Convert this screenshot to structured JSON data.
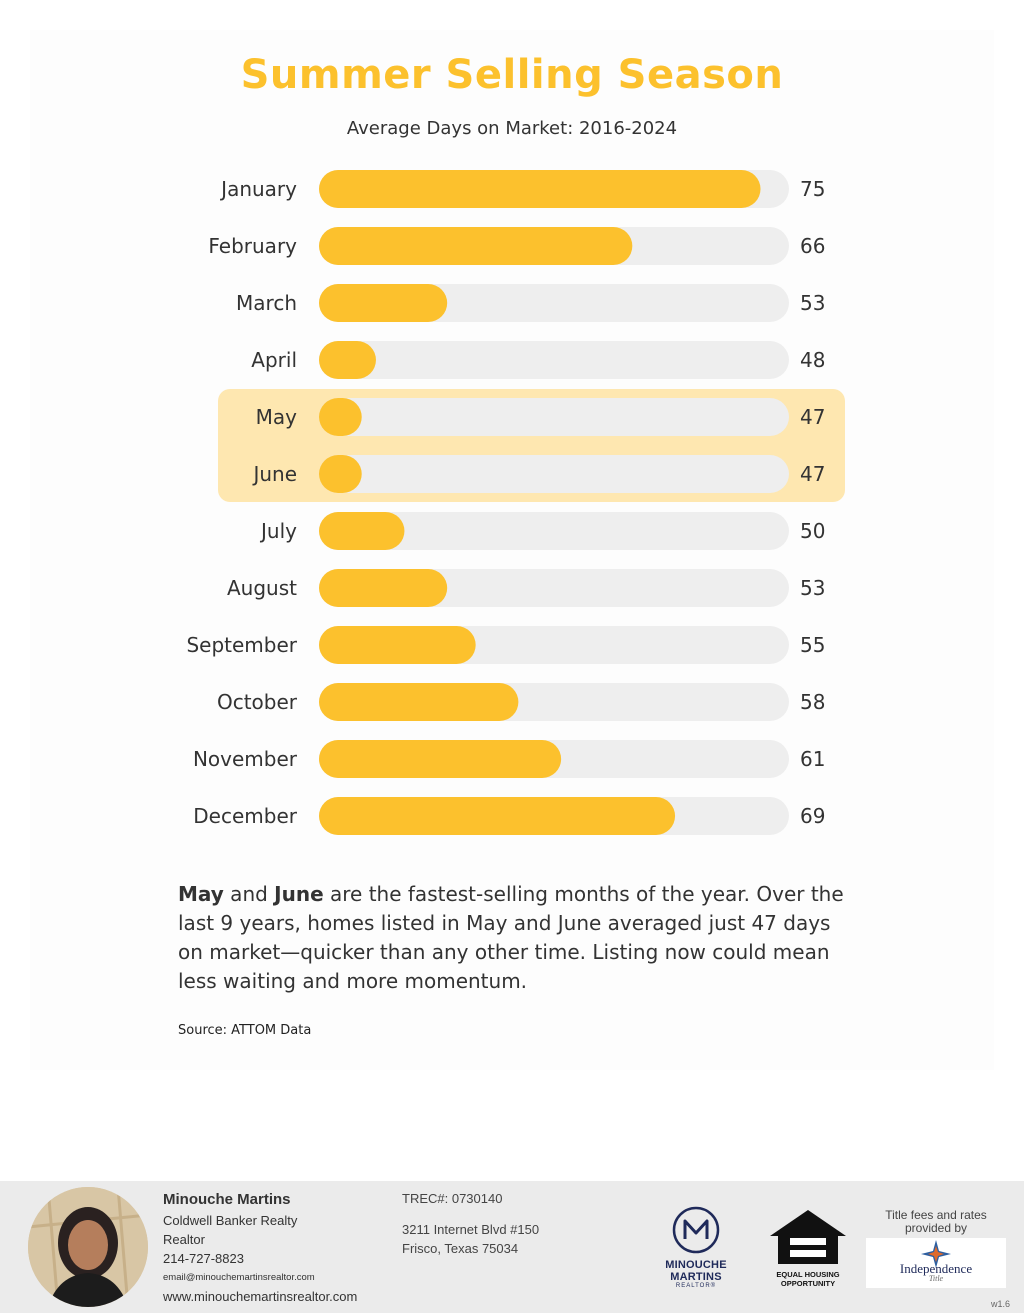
{
  "chart_data": {
    "type": "bar",
    "orientation": "horizontal",
    "title": "Summer Selling Season",
    "subtitle": "Average Days on Market: 2016-2024",
    "categories": [
      "January",
      "February",
      "March",
      "April",
      "May",
      "June",
      "July",
      "August",
      "September",
      "October",
      "November",
      "December"
    ],
    "values": [
      75,
      66,
      53,
      48,
      47,
      47,
      50,
      53,
      55,
      58,
      61,
      69
    ],
    "highlighted": [
      "May",
      "June"
    ],
    "bar_color": "#fcc12d",
    "track_color": "#eeeeee",
    "highlight_color": "#fee7b0",
    "grid": false
  },
  "description": {
    "may": "May",
    "and": " and ",
    "june": "June",
    "rest": " are the fastest-selling months of the year.  Over the last 9 years, homes listed in May and June averaged just 47 days on market—quicker than any other time. Listing now could mean less waiting and more momentum."
  },
  "source": "Source: ATTOM Data",
  "agent": {
    "name": "Minouche Martins",
    "brokerage": "Coldwell Banker Realty",
    "role": "Realtor",
    "phone": "214-727-8823",
    "email": "email@minouchemartinsrealtor.com",
    "website": "www.minouchemartinsrealtor.com"
  },
  "office": {
    "trec": "TREC#: 0730140",
    "address1": "3211 Internet Blvd #150",
    "address2": "Frisco, Texas 75034"
  },
  "logos": {
    "mm_name": "MINOUCHE MARTINS",
    "mm_sub": "REALTOR®",
    "eho_line1": "EQUAL HOUSING",
    "eho_line2": "OPPORTUNITY",
    "title_fees": "Title fees and rates provided by",
    "independence_name": "Independence",
    "independence_sub": "Title"
  },
  "version": "w1.6"
}
